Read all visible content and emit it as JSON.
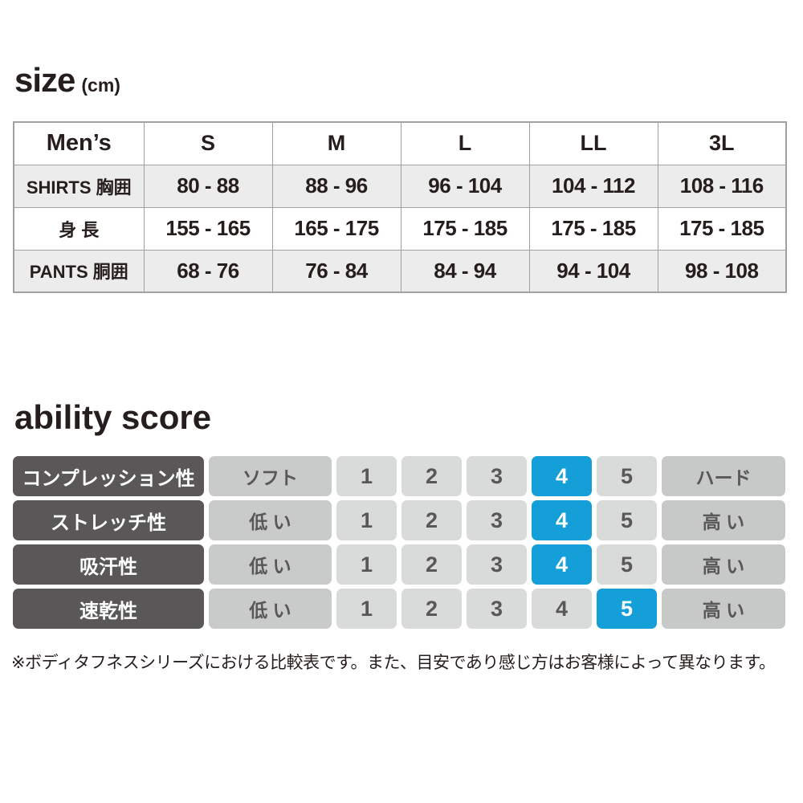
{
  "size_section": {
    "title": "size",
    "unit": "(cm)",
    "table": {
      "header": [
        "Men’s",
        "S",
        "M",
        "L",
        "LL",
        "3L"
      ],
      "rows": [
        {
          "label": "SHIRTS 胸囲",
          "values": [
            "80 - 88",
            "88 - 96",
            "96 - 104",
            "104 - 112",
            "108 - 116"
          ]
        },
        {
          "label": "身 長",
          "values": [
            "155 - 165",
            "165 - 175",
            "175 - 185",
            "175 - 185",
            "175 - 185"
          ]
        },
        {
          "label": "PANTS 胴囲",
          "values": [
            "68 - 76",
            "76 - 84",
            "84 - 94",
            "94 - 104",
            "98 - 108"
          ]
        }
      ]
    }
  },
  "ability_section": {
    "title": "ability score",
    "scale": [
      "1",
      "2",
      "3",
      "4",
      "5"
    ],
    "rows": [
      {
        "label": "コンプレッション性",
        "low": "ソフト",
        "high": "ハード",
        "score": 4
      },
      {
        "label": "ストレッチ性",
        "low": "低 い",
        "high": "高 い",
        "score": 4
      },
      {
        "label": "吸汗性",
        "low": "低 い",
        "high": "高 い",
        "score": 4
      },
      {
        "label": "速乾性",
        "low": "低 い",
        "high": "高 い",
        "score": 5
      }
    ],
    "colors": {
      "selected_blue": "#149fd9",
      "label_dark": "#595757",
      "end_gray": "#c7c8c8",
      "num_gray": "#d9dada"
    }
  },
  "footnote": "※ボディタフネスシリーズにおける比較表です。また、目安であり感じ方はお客様によって異なります。"
}
